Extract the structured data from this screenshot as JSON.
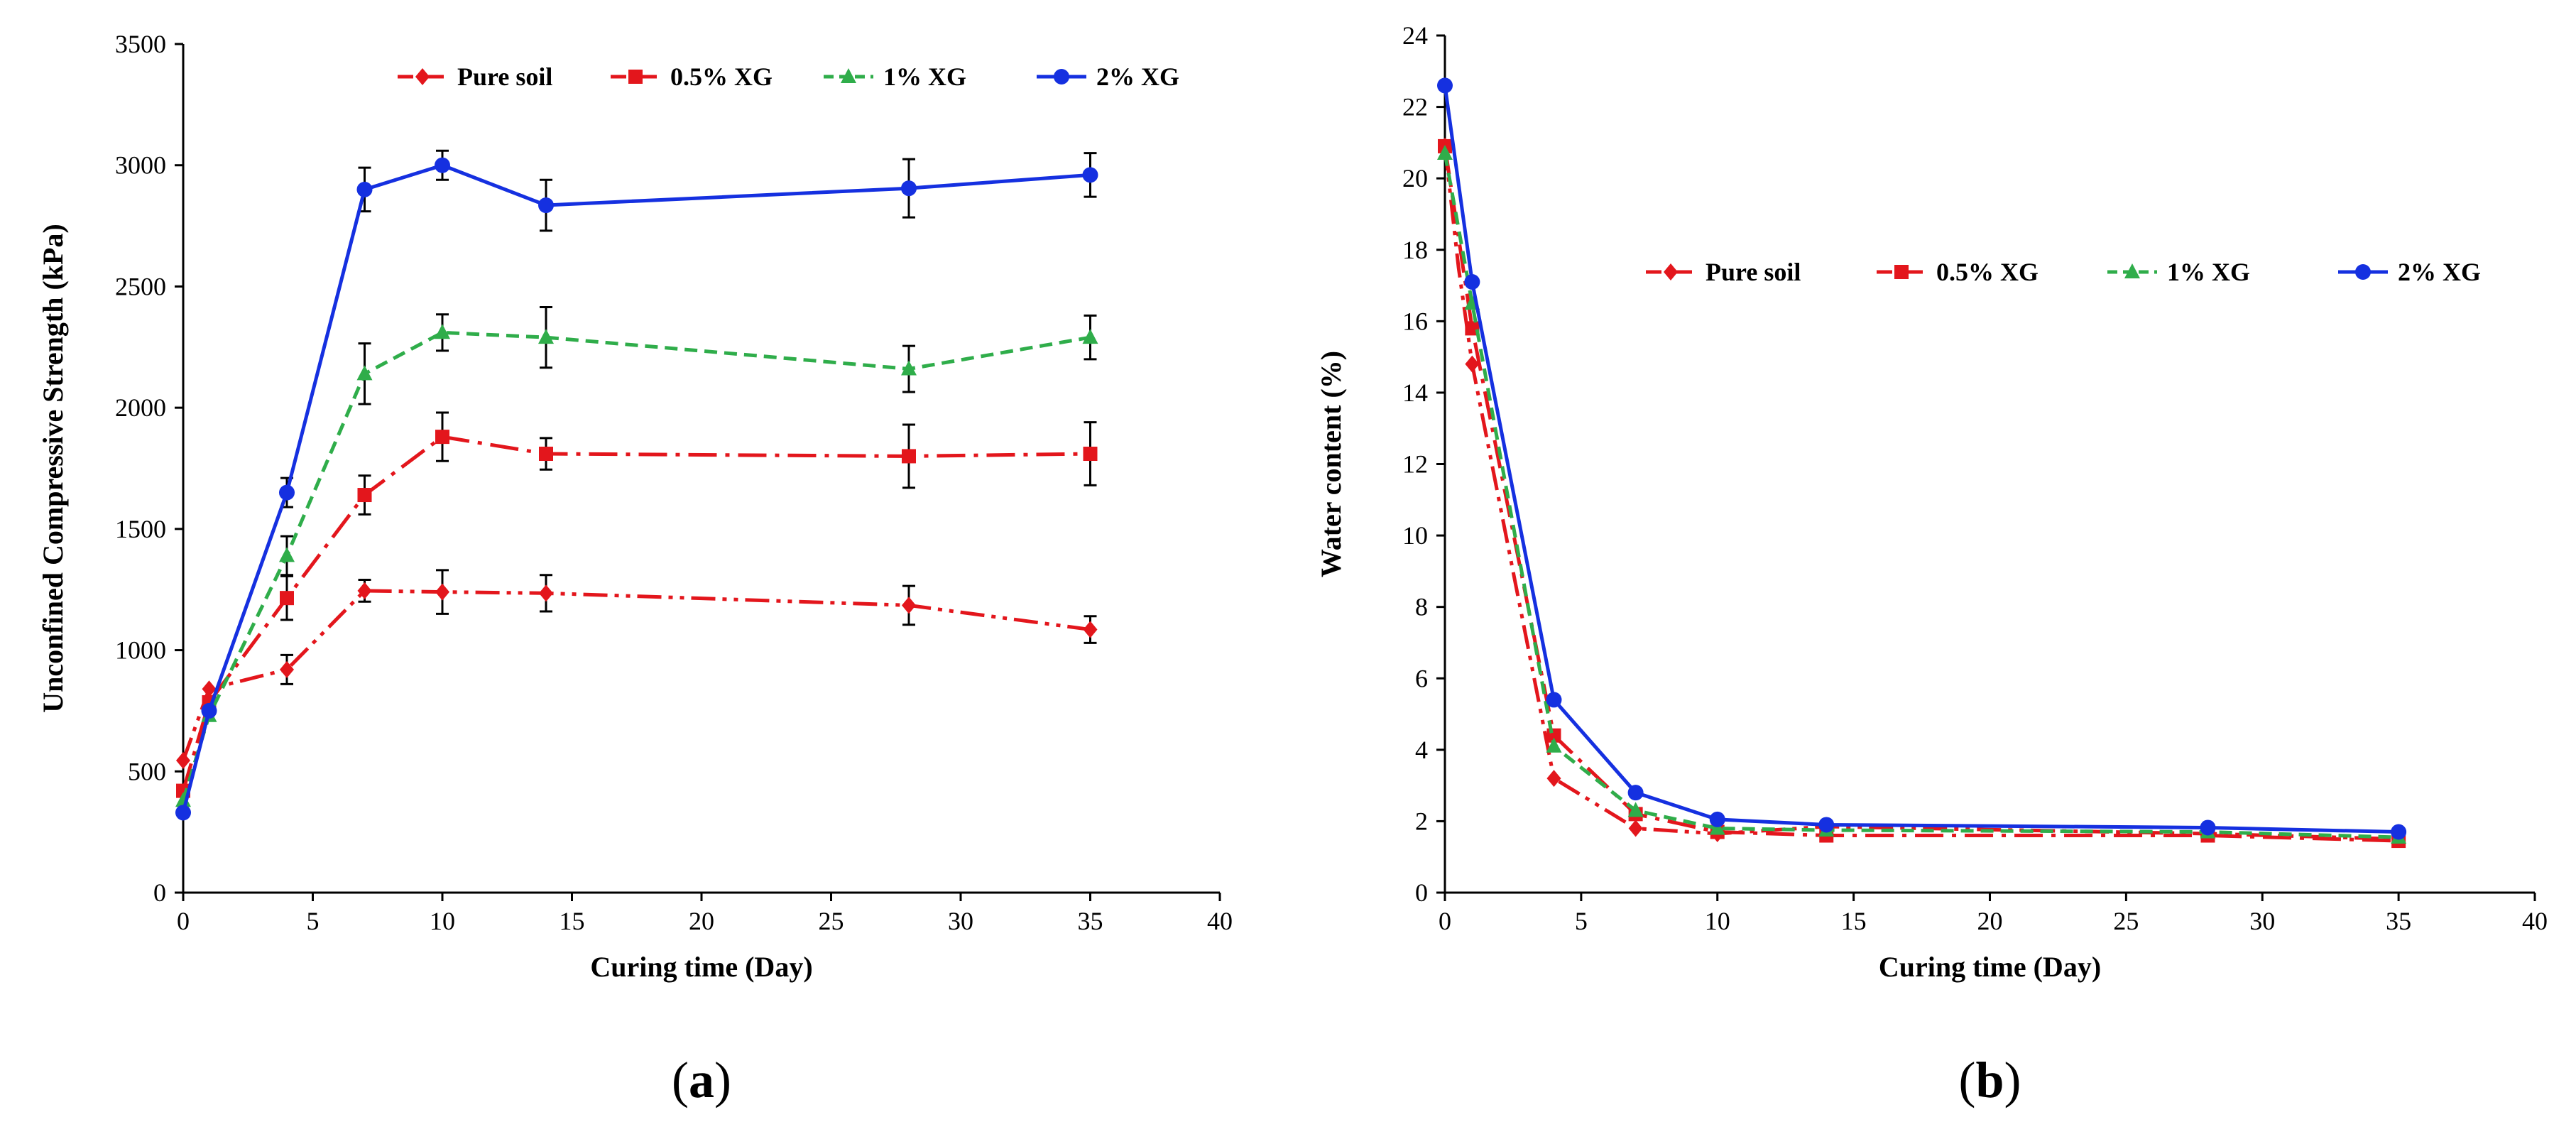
{
  "colors": {
    "pure_soil": "#e3161c",
    "xg_05": "#e3161c",
    "xg_1": "#2fad4a",
    "xg_2": "#1530e0",
    "axis": "#000000"
  },
  "chart_data": [
    {
      "type": "line",
      "panel_label": "(a)",
      "panel_letter": "a",
      "title": "",
      "xlabel": "Curing time (Day)",
      "ylabel": "Unconfined Compressive Strength (kPa)",
      "xlim": [
        0,
        40
      ],
      "ylim": [
        0,
        3500
      ],
      "xticks": [
        0,
        5,
        10,
        15,
        20,
        25,
        30,
        35,
        40
      ],
      "yticks": [
        0,
        500,
        1000,
        1500,
        2000,
        2500,
        3000,
        3500
      ],
      "grid": false,
      "legend_position": "top",
      "series": [
        {
          "name": "Pure soil",
          "marker": "diamond",
          "dash": "long-dash-dot-dot",
          "color": "#e3161c",
          "x": [
            0,
            1,
            4,
            7,
            10,
            14,
            28,
            35
          ],
          "y": [
            545,
            840,
            920,
            1245,
            1240,
            1235,
            1185,
            1085
          ],
          "error": [
            0,
            0,
            60,
            45,
            90,
            75,
            80,
            55
          ]
        },
        {
          "name": "0.5% XG",
          "marker": "square",
          "dash": "long-dash-dot",
          "color": "#e3161c",
          "x": [
            0,
            1,
            4,
            7,
            10,
            14,
            28,
            35
          ],
          "y": [
            420,
            785,
            1215,
            1640,
            1880,
            1810,
            1800,
            1810
          ],
          "error": [
            0,
            0,
            90,
            80,
            100,
            65,
            130,
            130
          ]
        },
        {
          "name": "1% XG",
          "marker": "triangle",
          "dash": "dash",
          "color": "#2fad4a",
          "x": [
            0,
            1,
            4,
            7,
            10,
            14,
            28,
            35
          ],
          "y": [
            380,
            730,
            1390,
            2140,
            2310,
            2290,
            2160,
            2290
          ],
          "error": [
            0,
            0,
            80,
            125,
            75,
            125,
            95,
            90
          ]
        },
        {
          "name": "2% XG",
          "marker": "circle",
          "dash": "solid",
          "color": "#1530e0",
          "x": [
            0,
            1,
            4,
            7,
            10,
            14,
            28,
            35
          ],
          "y": [
            330,
            750,
            1650,
            2900,
            3000,
            2835,
            2905,
            2960
          ],
          "error": [
            0,
            0,
            60,
            90,
            60,
            105,
            120,
            90
          ]
        }
      ]
    },
    {
      "type": "line",
      "panel_label": "(b)",
      "panel_letter": "b",
      "title": "",
      "xlabel": "Curing time (Day)",
      "ylabel": "Water content (%)",
      "xlim": [
        0,
        40
      ],
      "ylim": [
        0,
        24
      ],
      "xticks": [
        0,
        5,
        10,
        15,
        20,
        25,
        30,
        35,
        40
      ],
      "yticks": [
        0,
        2,
        4,
        6,
        8,
        10,
        12,
        14,
        16,
        18,
        20,
        22,
        24
      ],
      "grid": false,
      "legend_position": "upper-middle",
      "series": [
        {
          "name": "Pure soil",
          "marker": "diamond",
          "dash": "long-dash-dot-dot",
          "color": "#e3161c",
          "x": [
            0,
            0.5,
            1,
            4,
            7,
            10,
            14,
            28,
            35
          ],
          "y": [
            20.9,
            17.5,
            14.8,
            3.2,
            1.8,
            1.65,
            1.85,
            1.65,
            1.5
          ]
        },
        {
          "name": "0.5% XG",
          "marker": "square",
          "dash": "long-dash-dot",
          "color": "#e3161c",
          "x": [
            0,
            1,
            4,
            7,
            10,
            14,
            28,
            35
          ],
          "y": [
            20.9,
            15.8,
            4.4,
            2.2,
            1.7,
            1.6,
            1.6,
            1.45
          ]
        },
        {
          "name": "1% XG",
          "marker": "triangle",
          "dash": "dash",
          "color": "#2fad4a",
          "x": [
            0,
            1,
            4,
            7,
            10,
            14,
            28,
            35
          ],
          "y": [
            20.7,
            16.5,
            4.1,
            2.3,
            1.8,
            1.75,
            1.7,
            1.55
          ]
        },
        {
          "name": "2% XG",
          "marker": "circle",
          "dash": "solid",
          "color": "#1530e0",
          "x": [
            0,
            1,
            4,
            7,
            10,
            14,
            28,
            35
          ],
          "y": [
            22.6,
            17.1,
            5.4,
            2.8,
            2.05,
            1.9,
            1.82,
            1.7
          ]
        }
      ]
    }
  ]
}
